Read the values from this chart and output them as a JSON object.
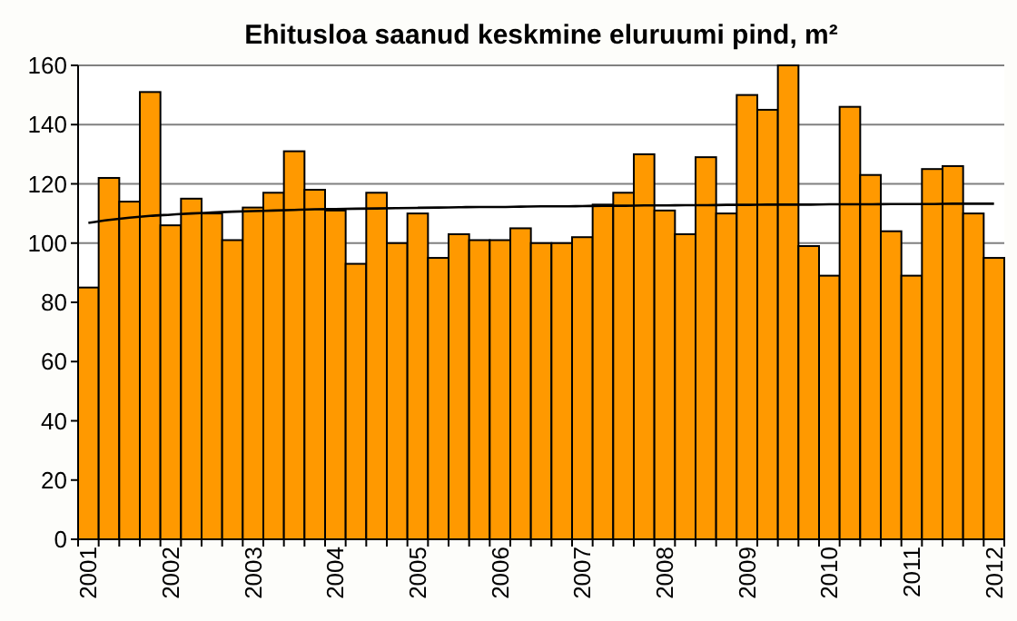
{
  "chart_data": {
    "type": "bar",
    "title": "Ehitusloa saanud keskmine eluruumi pind, m²",
    "categories": [
      "2001",
      null,
      null,
      null,
      "2002",
      null,
      null,
      null,
      "2003",
      null,
      null,
      null,
      "2004",
      null,
      null,
      null,
      "2005",
      null,
      null,
      null,
      "2006",
      null,
      null,
      null,
      "2007",
      null,
      null,
      null,
      "2008",
      null,
      null,
      null,
      "2009",
      null,
      null,
      null,
      "2010",
      null,
      null,
      null,
      "2011",
      null,
      null,
      null,
      "2012"
    ],
    "series": [
      {
        "color": "#ff9900",
        "values": [
          85,
          122,
          114,
          151,
          106,
          115,
          110,
          101,
          112,
          117,
          131,
          118,
          111,
          93,
          117,
          100,
          110,
          95,
          103,
          101,
          101,
          105,
          100,
          100,
          102,
          113,
          117,
          130,
          111,
          103,
          129,
          110,
          150,
          145,
          160,
          99,
          89,
          146,
          123,
          104,
          89,
          125,
          126,
          110,
          95
        ]
      },
      {
        "type": "line",
        "color": "#000000",
        "values": [
          106.8,
          107.8,
          108.6,
          109.2,
          109.6,
          110,
          110.3,
          110.6,
          110.8,
          111,
          111.2,
          111.4,
          111.5,
          111.6,
          111.7,
          111.8,
          111.9,
          112,
          112.1,
          112.2,
          112.2,
          112.3,
          112.4,
          112.4,
          112.5,
          112.6,
          112.6,
          112.7,
          112.7,
          112.8,
          112.8,
          112.9,
          112.9,
          113,
          113,
          113,
          113.1,
          113.1,
          113.1,
          113.2,
          113.2,
          113.2,
          113.3,
          113.3,
          113.3
        ]
      }
    ],
    "ylim": [
      0,
      160
    ],
    "yticks": [
      0,
      20,
      40,
      60,
      80,
      100,
      120,
      140,
      160
    ],
    "grid": "y"
  }
}
